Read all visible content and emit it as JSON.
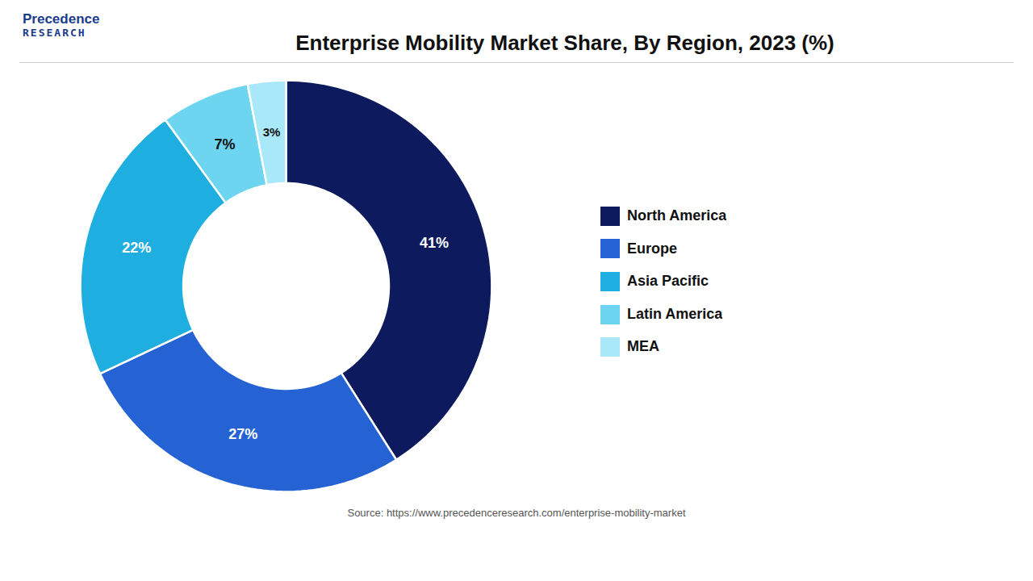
{
  "chart_data": {
    "type": "donut",
    "title": "Enterprise Mobility Market Share, By Region, 2023 (%)",
    "categories": [
      "North America",
      "Europe",
      "Asia Pacific",
      "Latin America",
      "MEA"
    ],
    "values": [
      41,
      27,
      22,
      7,
      3
    ],
    "value_labels": [
      "41%",
      "27%",
      "22%",
      "7%",
      "3%"
    ],
    "colors": [
      "#0d1b5e",
      "#2563d4",
      "#1eaee0",
      "#6dd5f0",
      "#a8e8f8"
    ],
    "data_labels": true,
    "legend": "right",
    "annotations": [
      "Precedence",
      "RESEARCH",
      "Source: https://www.precedenceresearch.com/enterprise-mobility-market"
    ]
  }
}
